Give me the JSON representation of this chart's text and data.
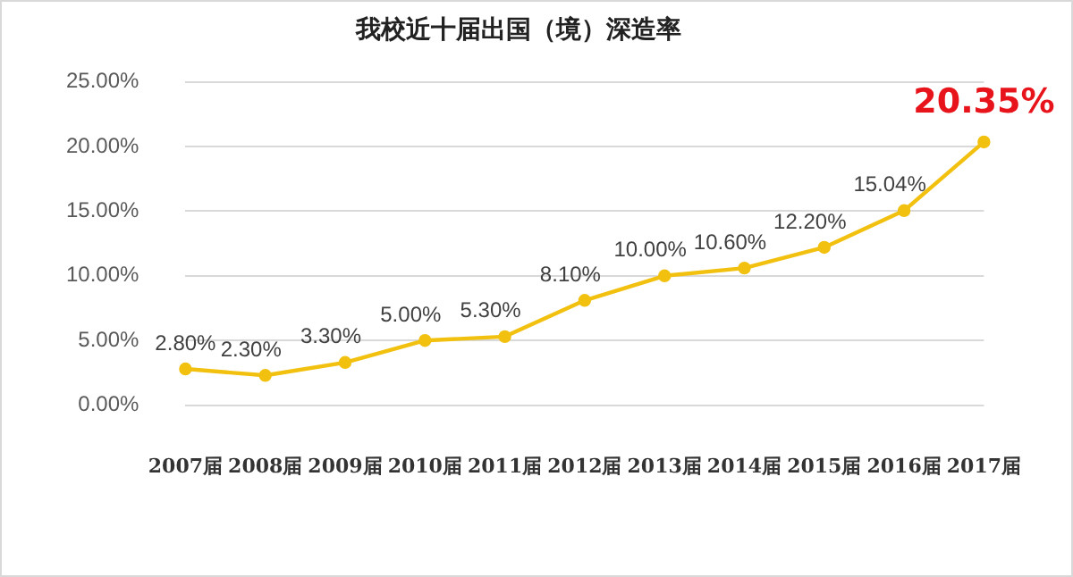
{
  "chart_data": {
    "type": "line",
    "title": "我校近十届出国（境）深造率",
    "categories": [
      "2007届",
      "2008届",
      "2009届",
      "2010届",
      "2011届",
      "2012届",
      "2013届",
      "2014届",
      "2015届",
      "2016届",
      "2017届"
    ],
    "series": [
      {
        "color": "#f2c10f",
        "values": [
          2.8,
          2.3,
          3.3,
          5.0,
          5.3,
          8.1,
          10.0,
          10.6,
          12.2,
          15.04,
          20.35
        ],
        "value_labels": [
          "2.80%",
          "2.30%",
          "3.30%",
          "5.00%",
          "5.30%",
          "8.10%",
          "10.00%",
          "10.60%",
          "12.20%",
          "15.04%",
          "20.35%"
        ]
      }
    ],
    "ylim": [
      0,
      25
    ],
    "yticks": [
      {
        "value": 0,
        "label": "0.00%"
      },
      {
        "value": 5,
        "label": "5.00%"
      },
      {
        "value": 10,
        "label": "10.00%"
      },
      {
        "value": 15,
        "label": "15.00%"
      },
      {
        "value": 20,
        "label": "20.00%"
      },
      {
        "value": 25,
        "label": "25.00%"
      }
    ],
    "grid": "y",
    "legend": false,
    "marker": "circle",
    "line_style": "solid"
  }
}
